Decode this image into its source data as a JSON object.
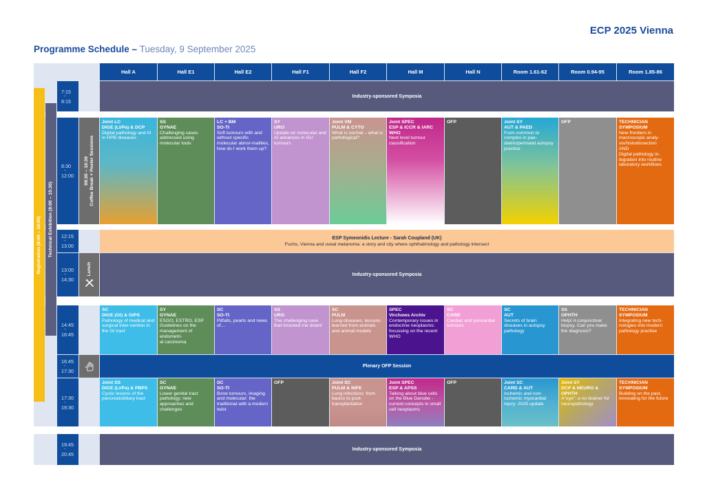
{
  "header": {
    "brand": "ECP 2025 Vienna",
    "title_strong": "Programme Schedule –",
    "title_date": " Tuesday, 9 September 2025"
  },
  "halls": [
    "Hall A",
    "Hall E1",
    "Hall E2",
    "Hall F1",
    "Hall F2",
    "Hall M",
    "Hall N",
    "Room 1.61-62",
    "Room 0.94-95",
    "Room 1.85-86"
  ],
  "times": {
    "t1": {
      "start": "7:15",
      "end": "8:15"
    },
    "t2": {
      "start": "8:30",
      "end": "12:00"
    },
    "t3": {
      "start": "12:15",
      "end": "13:00"
    },
    "t4": {
      "start": "13:00",
      "end": "14:30"
    },
    "t5": {
      "start": "14:45",
      "end": "16:45"
    },
    "t6": {
      "start": "16:45",
      "end": "17:30"
    },
    "t7": {
      "start": "17:30",
      "end": "19:30"
    },
    "t8": {
      "start": "19:45",
      "end": "20:45"
    },
    "dash": "–"
  },
  "bands": {
    "registration": "Registration (8:00 – 18:00)",
    "exhibition": "Technical Exhibition (9:00 – 15:30)",
    "coffee_line1": "09:30 – 10:30",
    "coffee_line2": "Coffee Break + Poster Sessions",
    "lunch": "Lunch"
  },
  "spans": {
    "industry": "Industry-sponsored Symposia",
    "lecture_title": "ESP Symeonidis Lecture - Sarah Coupland (UK)",
    "lecture_sub": "Fuchs, Vienna and uveal melanoma: a story and city where ophthalmology and pathology intersect",
    "plenary": "Plenary OFP Session"
  },
  "sessions": {
    "morning": [
      {
        "tag": "Joint LC\nDIGE (Li/Pa) & DCP",
        "desc": "Digital pathology and AI in HPB diseases"
      },
      {
        "tag": "SS\nGYNAE",
        "desc": "Challenging cases addressed using molecular tools"
      },
      {
        "tag": "LC + BM\nSO-TI",
        "desc": "Soft tumours with and without specific molecular abnor-malities, how do I work them up?"
      },
      {
        "tag": "SY\nURO",
        "desc": "Update on molecular and AI advances in GU tumours"
      },
      {
        "tag": "Joint VM\nPULM & CYTO",
        "desc": "What is normal – what is pathological?"
      },
      {
        "tag": "Joint SPEC\nESP & ICCR & IARC\nWHO",
        "desc": "Next level tumour classification"
      },
      {
        "tag": "OFP",
        "desc": ""
      },
      {
        "tag": "Joint SY\nAUT & PAED",
        "desc": "From common to complex in pae-diatric/perinatal autopsy practice"
      },
      {
        "tag": "OFP",
        "desc": ""
      },
      {
        "tag": "TECHNICIAN\nSYMPOSIUM",
        "desc": "New frontiers in macroscopic analy-sis/histodissection\nAND\nDigital pathology in-tegration into routine laboratory workflows"
      }
    ],
    "afternoon": [
      {
        "tag": "SC\nDIGE (GI) & GIPS",
        "desc": "Pathology of medical and surgical inter-vention in the GI tract"
      },
      {
        "tag": "SY\nGYNAE",
        "desc": "ESGO, ESTRO, ESP Guidelines on the management of endometri-\nal carcinoma"
      },
      {
        "tag": "SC\nSO-TI",
        "desc": "Pitfalls, pearls and news of..."
      },
      {
        "tag": "SS\nURO",
        "desc": "The challenging case that knocked me down!"
      },
      {
        "tag": "SC\nPULM",
        "desc": "Lung diseases: lessons learned from animals and animal models"
      },
      {
        "tag": "SPEC\nVirchows Archiv",
        "desc": "Contemporary issues in endocrine neoplasms: focussing on the recent WHO"
      },
      {
        "tag": "SC\nCARD",
        "desc": "Cardiac and pericardial tumours"
      },
      {
        "tag": "SC\nAUT",
        "desc": "Secrets of brain diseases in autopsy pathology"
      },
      {
        "tag": "SS\nOPHTH",
        "desc": "Help! A conjunctival biopsy. Can you make the diagnosis?"
      },
      {
        "tag": "TECHNICIAN\nSYMPOSIUM",
        "desc": "Integrating new tech-nologies into modern pathology practise"
      }
    ],
    "evening": [
      {
        "tag": "Joint SS\nDIGE (Li/Pa) & PBPS",
        "desc": "Cystic lesions of the pancreatobiliary tract"
      },
      {
        "tag": "SC\nGYNAE",
        "desc": "Lower genital tract pathology: new approaches and challenges"
      },
      {
        "tag": "SC\nSO-TI",
        "desc": "Bone tumours, imaging and molecular: the traditional with a modern twist"
      },
      {
        "tag": "OFP",
        "desc": ""
      },
      {
        "tag": "Joint SC\nPULM & INFE",
        "desc": "Lung infections: from basics to post-transplantation"
      },
      {
        "tag": "Joint SPEC\nESP & APSS",
        "desc": "Talking about blue cells on the Blue Danube - current concepts in small cell neoplasms"
      },
      {
        "tag": "OFP",
        "desc": ""
      },
      {
        "tag": "Joint SC\nCARD & AUT",
        "desc": "Ischemic and non-ischemic myocardial injury: 2025 update"
      },
      {
        "tag": "Joint SY\nDCP & NEURO &\nOPHTH",
        "desc": "A\"eye\": a no brainer for neuropathology"
      },
      {
        "tag": "TECHNICIAN\nSYMPOSIUM",
        "desc": "Building on the past, innovating for the future"
      }
    ]
  },
  "colors": {
    "navy": "#0f4c9c",
    "industry": "#575a7c",
    "lecture": "#fcc896",
    "registration": "#f8be18",
    "exhibition": "#5a5e7f",
    "coffee": "#6d6d6d",
    "technician": "#e46a12"
  }
}
